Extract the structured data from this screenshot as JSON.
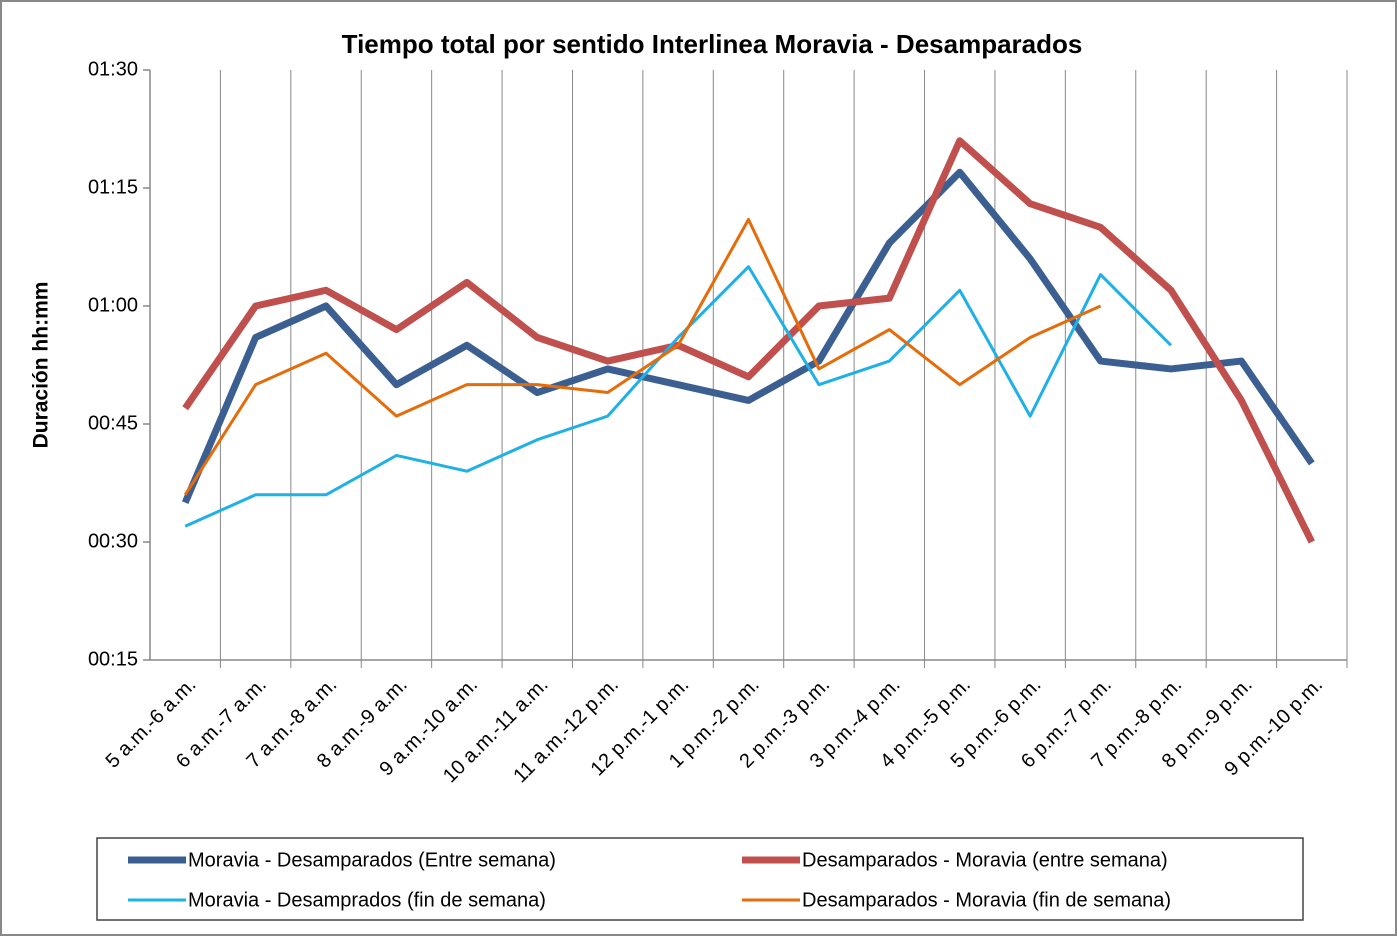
{
  "chart_data": {
    "type": "line",
    "title": "Tiempo total por sentido Interlinea Moravia - Desamparados",
    "y_label": "Duración hh:mm",
    "categories": [
      "5 a.m.-6 a.m.",
      "6 a.m.-7 a.m.",
      "7 a.m.-8 a.m.",
      "8 a.m.-9 a.m.",
      "9 a.m.-10 a.m.",
      "10 a.m.-11 a.m.",
      "11 a.m.-12 p.m.",
      "12 p.m.-1 p.m.",
      "1 p.m.-2 p.m.",
      "2 p.m.-3 p.m.",
      "3 p.m.-4 p.m.",
      "4 p.m.-5 p.m.",
      "5 p.m.-6 p.m.",
      "6 p.m.-7 p.m.",
      "7 p.m.-8 p.m.",
      "8 p.m.-9 p.m.",
      "9 p.m.-10 p.m."
    ],
    "series": [
      {
        "name": "Moravia - Desamparados (Entre semana)",
        "color": "#3c5f91",
        "width": 7,
        "values": [
          35,
          56,
          60,
          50,
          55,
          49,
          52,
          50,
          48,
          53,
          68,
          77,
          66,
          53,
          52,
          53,
          40
        ]
      },
      {
        "name": "Desamparados - Moravia (entre semana)",
        "color": "#c0504d",
        "width": 7,
        "values": [
          47,
          60,
          62,
          57,
          63,
          56,
          53,
          55,
          51,
          60,
          61,
          81,
          73,
          70,
          62,
          48,
          30
        ]
      },
      {
        "name": "Moravia - Desamprados (fin de semana)",
        "color": "#1fb0e6",
        "width": 3,
        "values": [
          32,
          36,
          36,
          41,
          39,
          43,
          46,
          56,
          65,
          50,
          53,
          62,
          46,
          64,
          55,
          null,
          null
        ]
      },
      {
        "name": "Desamparados - Moravia (fin de semana)",
        "color": "#e46c0a",
        "width": 3,
        "values": [
          36,
          50,
          54,
          46,
          50,
          50,
          49,
          55,
          71,
          52,
          57,
          50,
          56,
          60,
          null,
          null,
          null
        ]
      }
    ],
    "ylim": [
      15,
      90
    ],
    "yticks": [
      {
        "value": 15,
        "label": "00:15"
      },
      {
        "value": 30,
        "label": "00:30"
      },
      {
        "value": 45,
        "label": "00:45"
      },
      {
        "value": 60,
        "label": "01:00"
      },
      {
        "value": 75,
        "label": "01:15"
      },
      {
        "value": 90,
        "label": "01:30"
      }
    ]
  }
}
